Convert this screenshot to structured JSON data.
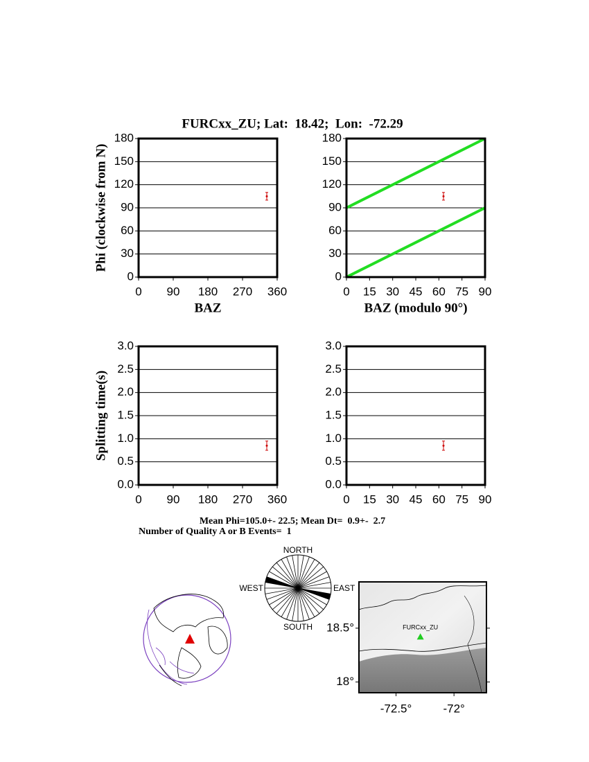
{
  "title": "FURCxx_ZU; Lat:  18.42;  Lon:  -72.29",
  "chart_data": [
    {
      "type": "scatter",
      "ylabel": "Phi (clockwise from N)",
      "xlabel": "BAZ",
      "xlim": [
        0,
        360
      ],
      "xticks": [
        0,
        90,
        180,
        270,
        360
      ],
      "ylim": [
        0,
        180
      ],
      "yticks": [
        0,
        30,
        60,
        90,
        120,
        150,
        180
      ],
      "grid": true,
      "series": [
        {
          "color": "#cc0000",
          "x": [
            333
          ],
          "values": [
            105
          ],
          "errors": [
            5
          ]
        }
      ]
    },
    {
      "type": "scatter",
      "xlabel": "BAZ (modulo 90°)",
      "xlim": [
        0,
        90
      ],
      "xticks": [
        0,
        15,
        30,
        45,
        60,
        75,
        90
      ],
      "ylim": [
        0,
        180
      ],
      "yticks": [
        0,
        30,
        60,
        90,
        120,
        150,
        180
      ],
      "grid": true,
      "lines": [
        {
          "color": "#22dd22",
          "x": [
            0,
            90
          ],
          "values": [
            0,
            90
          ]
        },
        {
          "color": "#22dd22",
          "x": [
            0,
            90
          ],
          "values": [
            90,
            180
          ]
        }
      ],
      "series": [
        {
          "color": "#cc0000",
          "x": [
            63
          ],
          "values": [
            105
          ],
          "errors": [
            5
          ]
        }
      ]
    },
    {
      "type": "scatter",
      "ylabel": "Splitting time(s)",
      "xlim": [
        0,
        360
      ],
      "xticks": [
        0,
        90,
        180,
        270,
        360
      ],
      "ylim": [
        0,
        3
      ],
      "yticks": [
        {
          "value": 0,
          "label": "0.0"
        },
        {
          "value": 0.5,
          "label": "0.5"
        },
        {
          "value": 1,
          "label": "1.0"
        },
        {
          "value": 1.5,
          "label": "1.5"
        },
        {
          "value": 2,
          "label": "2.0"
        },
        {
          "value": 2.5,
          "label": "2.5"
        },
        {
          "value": 3,
          "label": "3.0"
        }
      ],
      "grid": true,
      "series": [
        {
          "color": "#cc0000",
          "x": [
            333
          ],
          "values": [
            0.85
          ],
          "errors": [
            0.1
          ]
        }
      ]
    },
    {
      "type": "scatter",
      "xlim": [
        0,
        90
      ],
      "xticks": [
        0,
        15,
        30,
        45,
        60,
        75,
        90
      ],
      "ylim": [
        0,
        3
      ],
      "yticks": [
        {
          "value": 0,
          "label": "0.0"
        },
        {
          "value": 0.5,
          "label": "0.5"
        },
        {
          "value": 1,
          "label": "1.0"
        },
        {
          "value": 1.5,
          "label": "1.5"
        },
        {
          "value": 2,
          "label": "2.0"
        },
        {
          "value": 2.5,
          "label": "2.5"
        },
        {
          "value": 3,
          "label": "3.0"
        }
      ],
      "grid": true,
      "series": [
        {
          "color": "#cc0000",
          "x": [
            63
          ],
          "values": [
            0.85
          ],
          "errors": [
            0.1
          ]
        }
      ]
    }
  ],
  "summary": [
    "Mean Phi=105.0+- 22.5; Mean Dt=  0.9+-  2.7",
    "Number of Quality A or B Events=  1"
  ],
  "rose": {
    "north": "NORTH",
    "south": "SOUTH",
    "west": "WEST",
    "east": "EAST"
  },
  "map": {
    "lonlim": [
      -72.82,
      -71.72
    ],
    "latlim": [
      17.9,
      18.93
    ],
    "xticks": [
      {
        "value": -72.5,
        "label": "-72.5°"
      },
      {
        "value": -72,
        "label": "-72°"
      }
    ],
    "yticks": [
      {
        "value": 18.5,
        "label": "18.5°"
      },
      {
        "value": 18,
        "label": "18°"
      }
    ],
    "station": {
      "name": "FURCxx_ZU",
      "lon": -72.29,
      "lat": 18.42,
      "color": "#22cc22"
    }
  }
}
